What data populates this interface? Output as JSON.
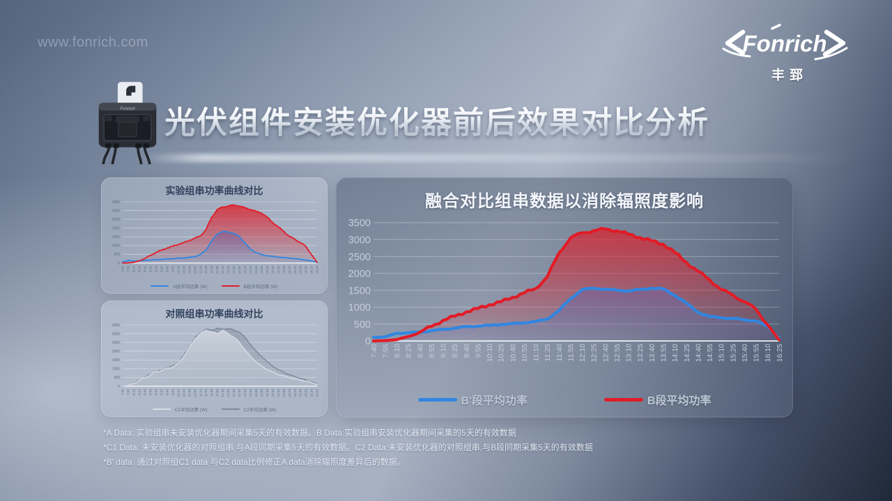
{
  "watermark": "www.fonrich.com",
  "logo": {
    "brand": "Fonrich",
    "cn": "丰郅"
  },
  "header": {
    "title": "光伏组件安装优化器前后效果对比分析"
  },
  "footnotes": [
    "*A Data: 实验组串未安装优化器期间采集5天的有效数据。B Data:实验组串安装优化器期间采集的5天的有效数据",
    "*C1 Data: 未安装优化器的对照组串,与A段同期采集5天的有效数据。C2 Data:未安装优化器的对照组串,与B段同期采集5天的有效数据",
    "*B' data: 通过对照组C1 data 与C2 data比例修正A data消除辐照度差异后的数据。"
  ],
  "chart_data": [
    {
      "type": "area",
      "title": "实验组串功率曲线对比",
      "xlabel": "",
      "ylabel": "",
      "ylim": [
        0,
        3500
      ],
      "ytick_step": 500,
      "grid": true,
      "legend_position": "bottom",
      "categories": [
        "7:40",
        "7:55",
        "8:10",
        "8:25",
        "8:40",
        "8:55",
        "9:10",
        "9:25",
        "9:40",
        "9:55",
        "10:10",
        "10:25",
        "10:40",
        "10:55",
        "11:10",
        "11:25",
        "11:40",
        "11:55",
        "12:10",
        "12:25",
        "12:40",
        "12:55",
        "13:10",
        "13:25",
        "13:40",
        "13:55",
        "14:10",
        "14:25",
        "14:40",
        "14:55",
        "15:10",
        "15:25",
        "15:40",
        "15:55",
        "16:10",
        "16:25"
      ],
      "series": [
        {
          "name": "A段平均功率  (W)",
          "color": "#3186e0",
          "values": [
            70,
            150,
            110,
            130,
            150,
            170,
            190,
            210,
            230,
            250,
            270,
            290,
            320,
            370,
            480,
            750,
            1250,
            1650,
            1800,
            1770,
            1700,
            1520,
            1150,
            800,
            600,
            480,
            420,
            380,
            340,
            310,
            280,
            250,
            210,
            170,
            110,
            50
          ]
        },
        {
          "name": "B段平均功率  (W)",
          "color": "#e11c27",
          "values": [
            0,
            10,
            40,
            130,
            260,
            430,
            610,
            730,
            860,
            960,
            1070,
            1160,
            1290,
            1420,
            1550,
            1900,
            2600,
            3050,
            3200,
            3260,
            3310,
            3260,
            3160,
            3060,
            2960,
            2860,
            2620,
            2320,
            2060,
            1810,
            1520,
            1360,
            1160,
            940,
            480,
            30
          ]
        }
      ]
    },
    {
      "type": "area",
      "title": "对照组串功率曲线对比",
      "xlabel": "",
      "ylabel": "",
      "ylim": [
        0,
        3500
      ],
      "ytick_step": 500,
      "grid": true,
      "legend_position": "bottom",
      "categories": [
        "7:40",
        "7:55",
        "8:10",
        "8:25",
        "8:40",
        "8:55",
        "9:10",
        "9:25",
        "9:40",
        "9:55",
        "10:10",
        "10:25",
        "10:40",
        "10:55",
        "11:10",
        "11:25",
        "11:40",
        "11:55",
        "12:10",
        "12:25",
        "12:40",
        "12:55",
        "13:10",
        "13:25",
        "13:40",
        "13:55",
        "14:10",
        "14:25",
        "14:40",
        "14:55",
        "15:10",
        "15:25",
        "15:40",
        "15:55",
        "16:10",
        "16:25"
      ],
      "series": [
        {
          "name": "C1平均功率  (W)",
          "color": "#d7dde6",
          "values": [
            0,
            50,
            150,
            300,
            480,
            650,
            800,
            900,
            1000,
            1100,
            1300,
            1700,
            2200,
            2700,
            3000,
            3200,
            3100,
            3000,
            3200,
            3000,
            2800,
            2500,
            2100,
            1700,
            1400,
            1150,
            950,
            800,
            680,
            580,
            500,
            420,
            350,
            280,
            200,
            100
          ]
        },
        {
          "name": "C2平均功率  (W)",
          "color": "#7f8a99",
          "values": [
            0,
            60,
            160,
            320,
            500,
            670,
            820,
            920,
            1030,
            1150,
            1350,
            1750,
            2250,
            2750,
            3050,
            3250,
            3200,
            3300,
            3250,
            3300,
            3200,
            3100,
            2800,
            2400,
            2000,
            1700,
            1400,
            1150,
            950,
            800,
            650,
            550,
            450,
            350,
            250,
            120
          ]
        }
      ]
    },
    {
      "type": "area",
      "title": "融合对比组串数据以消除辐照度影响",
      "xlabel": "",
      "ylabel": "",
      "ylim": [
        0,
        3500
      ],
      "ytick_step": 500,
      "grid": true,
      "legend_position": "bottom",
      "categories": [
        "7:40",
        "7:55",
        "8:10",
        "8:25",
        "8:40",
        "8:55",
        "9:10",
        "9:25",
        "9:40",
        "9:55",
        "10:10",
        "10:25",
        "10:40",
        "10:55",
        "11:10",
        "11:25",
        "11:40",
        "11:55",
        "12:10",
        "12:25",
        "12:40",
        "12:55",
        "13:10",
        "13:25",
        "13:40",
        "13:55",
        "14:10",
        "14:25",
        "14:40",
        "14:55",
        "15:10",
        "15:25",
        "15:40",
        "15:55",
        "16:10",
        "16:25"
      ],
      "series": [
        {
          "name": "B'段平均功率",
          "color": "#3186e0",
          "values": [
            110,
            120,
            230,
            240,
            260,
            300,
            340,
            380,
            420,
            440,
            460,
            490,
            510,
            540,
            570,
            650,
            900,
            1250,
            1520,
            1560,
            1530,
            1500,
            1480,
            1520,
            1560,
            1540,
            1350,
            1120,
            850,
            720,
            690,
            660,
            630,
            590,
            430,
            90
          ]
        },
        {
          "name": "B段平均功率",
          "color": "#e11c27",
          "values": [
            0,
            10,
            40,
            130,
            260,
            430,
            610,
            730,
            860,
            960,
            1070,
            1160,
            1290,
            1420,
            1550,
            1900,
            2600,
            3050,
            3200,
            3260,
            3310,
            3260,
            3160,
            3060,
            2960,
            2860,
            2620,
            2320,
            2060,
            1810,
            1520,
            1360,
            1160,
            940,
            480,
            30
          ]
        }
      ]
    }
  ]
}
